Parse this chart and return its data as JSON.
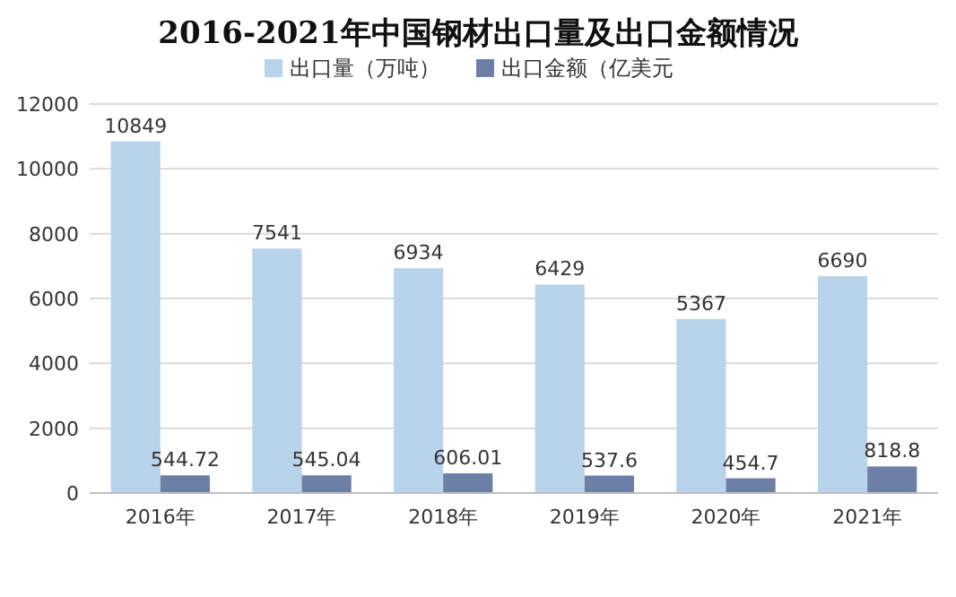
{
  "chart_data": {
    "type": "bar",
    "title": "2016-2021年中国钢材出口量及出口金额情况",
    "categories": [
      "2016年",
      "2017年",
      "2018年",
      "2019年",
      "2020年",
      "2021年"
    ],
    "series": [
      {
        "name": "出口量（万吨）",
        "color": "#b9d3ea",
        "values": [
          10849,
          7541,
          6934,
          6429,
          5367,
          6690
        ]
      },
      {
        "name": "出口金额（亿美元",
        "color": "#6e7fa6",
        "values": [
          544.72,
          545.04,
          606.01,
          537.6,
          454.7,
          818.8
        ]
      }
    ],
    "ylim": [
      0,
      12000
    ],
    "yticks": [
      0,
      2000,
      4000,
      6000,
      8000,
      10000,
      12000
    ],
    "grid": "y",
    "legend": "top",
    "data_labels": true
  }
}
